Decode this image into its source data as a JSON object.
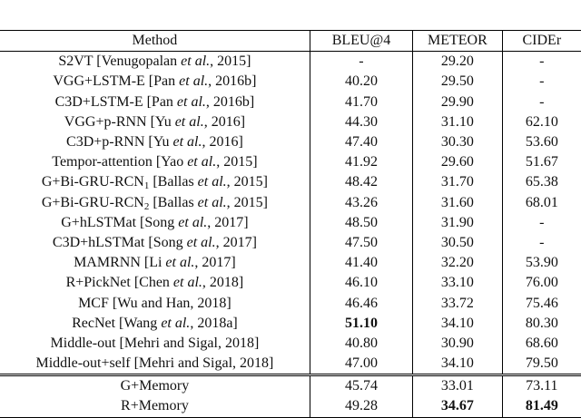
{
  "table": {
    "header": [
      "Method",
      "BLEU@4",
      "METEOR",
      "CIDEr"
    ],
    "rows": [
      {
        "method": [
          {
            "text": "S2VT [Venugopalan "
          },
          {
            "text": "et al.",
            "italic": true
          },
          {
            "text": ", 2015]"
          }
        ],
        "cells": [
          "-",
          "29.20",
          "-"
        ]
      },
      {
        "method": [
          {
            "text": "VGG+LSTM-E [Pan "
          },
          {
            "text": "et al.",
            "italic": true
          },
          {
            "text": ", 2016b]"
          }
        ],
        "cells": [
          "40.20",
          "29.50",
          "-"
        ]
      },
      {
        "method": [
          {
            "text": "C3D+LSTM-E [Pan "
          },
          {
            "text": "et al.",
            "italic": true
          },
          {
            "text": ", 2016b]"
          }
        ],
        "cells": [
          "41.70",
          "29.90",
          "-"
        ]
      },
      {
        "method": [
          {
            "text": "VGG+p-RNN [Yu "
          },
          {
            "text": "et al.",
            "italic": true
          },
          {
            "text": ", 2016]"
          }
        ],
        "cells": [
          "44.30",
          "31.10",
          "62.10"
        ]
      },
      {
        "method": [
          {
            "text": "C3D+p-RNN [Yu "
          },
          {
            "text": "et al.",
            "italic": true
          },
          {
            "text": ", 2016]"
          }
        ],
        "cells": [
          "47.40",
          "30.30",
          "53.60"
        ]
      },
      {
        "method": [
          {
            "text": "Tempor-attention [Yao "
          },
          {
            "text": "et al.",
            "italic": true
          },
          {
            "text": ", 2015]"
          }
        ],
        "cells": [
          "41.92",
          "29.60",
          "51.67"
        ]
      },
      {
        "method": [
          {
            "text": "G+Bi-GRU-RCN"
          },
          {
            "text": "1",
            "sub": true
          },
          {
            "text": " [Ballas "
          },
          {
            "text": "et al.",
            "italic": true
          },
          {
            "text": ", 2015]"
          }
        ],
        "cells": [
          "48.42",
          "31.70",
          "65.38"
        ]
      },
      {
        "method": [
          {
            "text": "G+Bi-GRU-RCN"
          },
          {
            "text": "2",
            "sub": true
          },
          {
            "text": " [Ballas "
          },
          {
            "text": "et al.",
            "italic": true
          },
          {
            "text": ", 2015]"
          }
        ],
        "cells": [
          "43.26",
          "31.60",
          "68.01"
        ]
      },
      {
        "method": [
          {
            "text": "G+hLSTMat [Song "
          },
          {
            "text": "et al.",
            "italic": true
          },
          {
            "text": ", 2017]"
          }
        ],
        "cells": [
          "48.50",
          "31.90",
          "-"
        ]
      },
      {
        "method": [
          {
            "text": "C3D+hLSTMat [Song "
          },
          {
            "text": "et al.",
            "italic": true
          },
          {
            "text": ", 2017]"
          }
        ],
        "cells": [
          "47.50",
          "30.50",
          "-"
        ]
      },
      {
        "method": [
          {
            "text": "MAMRNN [Li "
          },
          {
            "text": "et al.",
            "italic": true
          },
          {
            "text": ", 2017]"
          }
        ],
        "cells": [
          "41.40",
          "32.20",
          "53.90"
        ]
      },
      {
        "method": [
          {
            "text": "R+PickNet [Chen "
          },
          {
            "text": "et al.",
            "italic": true
          },
          {
            "text": ", 2018]"
          }
        ],
        "cells": [
          "46.10",
          "33.10",
          "76.00"
        ]
      },
      {
        "method": [
          {
            "text": "MCF [Wu and Han, 2018]"
          }
        ],
        "cells": [
          "46.46",
          "33.72",
          "75.46"
        ]
      },
      {
        "method": [
          {
            "text": "RecNet [Wang "
          },
          {
            "text": "et al.",
            "italic": true
          },
          {
            "text": ", 2018a]"
          }
        ],
        "cells": [
          {
            "text": "51.10",
            "bold": true
          },
          "34.10",
          "80.30"
        ]
      },
      {
        "method": [
          {
            "text": "Middle-out [Mehri and Sigal, 2018]"
          }
        ],
        "cells": [
          "40.80",
          "30.90",
          "68.60"
        ]
      },
      {
        "method": [
          {
            "text": "Middle-out+self [Mehri and Sigal, 2018]"
          }
        ],
        "cells": [
          "47.00",
          "34.10",
          "79.50"
        ]
      },
      {
        "method": [
          {
            "text": "G+Memory"
          }
        ],
        "cells": [
          "45.74",
          "33.01",
          "73.11"
        ],
        "separator_above": true
      },
      {
        "method": [
          {
            "text": "R+Memory"
          }
        ],
        "cells": [
          "49.28",
          {
            "text": "34.67",
            "bold": true
          },
          {
            "text": "81.49",
            "bold": true
          }
        ]
      }
    ]
  }
}
